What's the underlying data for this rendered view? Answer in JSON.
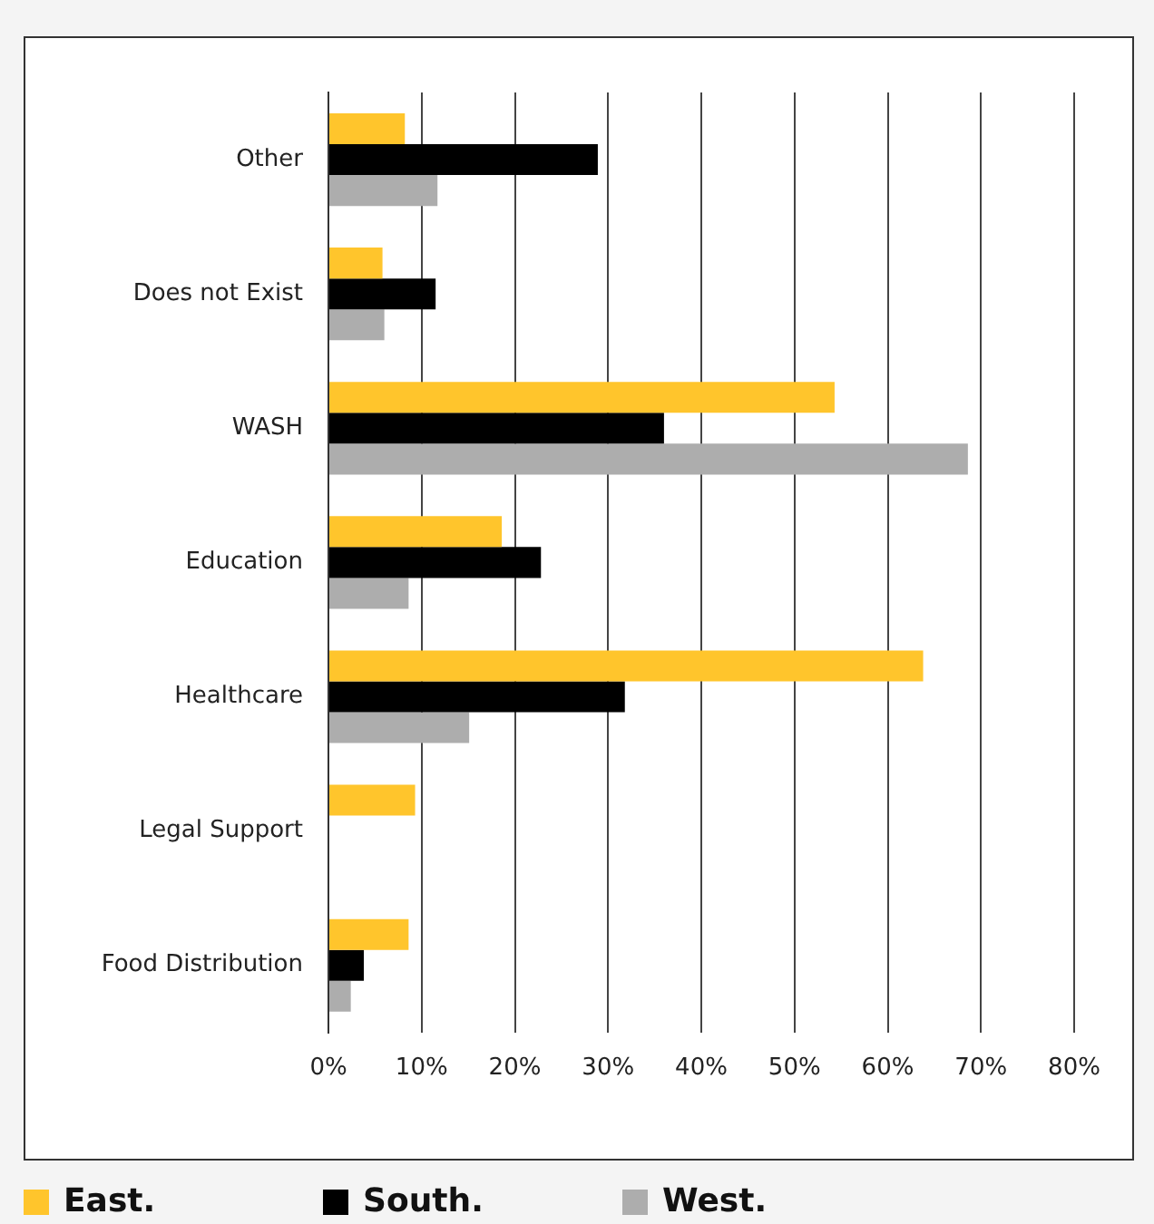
{
  "chart_data": {
    "type": "bar",
    "orientation": "horizontal",
    "categories": [
      "Other",
      "Does not Exist",
      "WASH",
      "Education",
      "Healthcare",
      "Legal Support",
      "Food Distribution"
    ],
    "series": [
      {
        "name": "East.",
        "color": "#ffc52c",
        "values": [
          8.2,
          5.8,
          54.3,
          18.6,
          63.8,
          9.3,
          8.6
        ]
      },
      {
        "name": "South.",
        "color": "#000000",
        "values": [
          28.9,
          11.5,
          36.0,
          22.8,
          31.8,
          null,
          3.8
        ]
      },
      {
        "name": "West.",
        "color": "#adadad",
        "values": [
          11.7,
          6.0,
          68.6,
          8.6,
          15.1,
          null,
          2.4
        ]
      }
    ],
    "xlim": [
      0,
      80
    ],
    "xticks": [
      {
        "value": 0,
        "label": "0%"
      },
      {
        "value": 10,
        "label": "10%"
      },
      {
        "value": 20,
        "label": "20%"
      },
      {
        "value": 30,
        "label": "30%"
      },
      {
        "value": 40,
        "label": "40%"
      },
      {
        "value": 50,
        "label": "50%"
      },
      {
        "value": 60,
        "label": "60%"
      },
      {
        "value": 70,
        "label": "70%"
      },
      {
        "value": 80,
        "label": "80%"
      }
    ],
    "grid": "x",
    "legend": "bottom"
  }
}
